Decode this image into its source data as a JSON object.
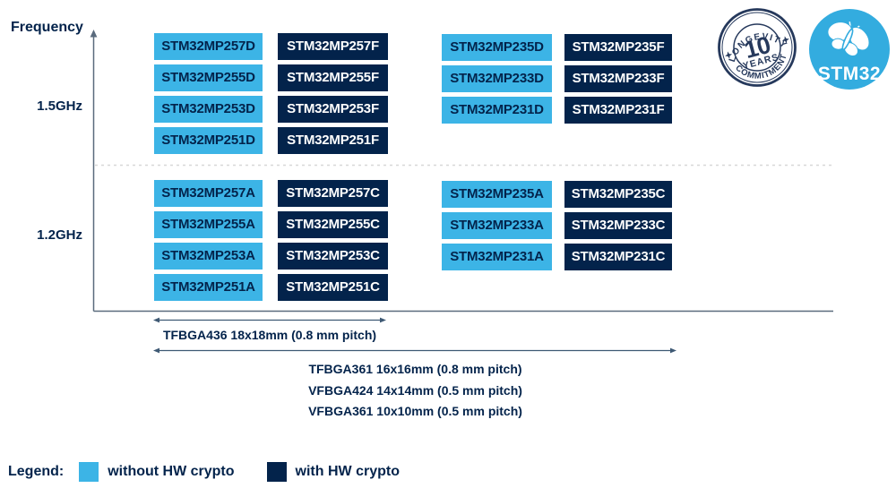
{
  "colors": {
    "light_blue": "#3CB4E6",
    "dark_navy": "#03234B",
    "axis_line": "#5A6B7D",
    "dotted_line": "#D8D8D8",
    "stamp_navy": "#26395C",
    "logo_blue": "#33ACDF"
  },
  "axis": {
    "title": "Frequency",
    "ticks": [
      "1.5GHz",
      "1.2GHz"
    ]
  },
  "groups": [
    {
      "id": "top-left",
      "frequency": "1.5GHz",
      "pairs": [
        [
          "STM32MP257D",
          "STM32MP257F"
        ],
        [
          "STM32MP255D",
          "STM32MP255F"
        ],
        [
          "STM32MP253D",
          "STM32MP253F"
        ],
        [
          "STM32MP251D",
          "STM32MP251F"
        ]
      ]
    },
    {
      "id": "top-right",
      "frequency": "1.5GHz",
      "pairs": [
        [
          "STM32MP235D",
          "STM32MP235F"
        ],
        [
          "STM32MP233D",
          "STM32MP233F"
        ],
        [
          "STM32MP231D",
          "STM32MP231F"
        ]
      ]
    },
    {
      "id": "bottom-left",
      "frequency": "1.2GHz",
      "pairs": [
        [
          "STM32MP257A",
          "STM32MP257C"
        ],
        [
          "STM32MP255A",
          "STM32MP255C"
        ],
        [
          "STM32MP253A",
          "STM32MP253C"
        ],
        [
          "STM32MP251A",
          "STM32MP251C"
        ]
      ]
    },
    {
      "id": "bottom-right",
      "frequency": "1.2GHz",
      "pairs": [
        [
          "STM32MP235A",
          "STM32MP235C"
        ],
        [
          "STM32MP233A",
          "STM32MP233C"
        ],
        [
          "STM32MP231A",
          "STM32MP231C"
        ]
      ]
    }
  ],
  "packages": {
    "arrow1_label": "TFBGA436 18x18mm (0.8 mm pitch)",
    "arrow2_labels": [
      "TFBGA361 16x16mm (0.8 mm pitch)",
      "VFBGA424 14x14mm (0.5 mm pitch)",
      "VFBGA361 10x10mm (0.5 mm pitch)"
    ]
  },
  "legend": {
    "title": "Legend:",
    "items": [
      {
        "label": "without HW crypto",
        "color": "#3CB4E6"
      },
      {
        "label": "with HW crypto",
        "color": "#03234B"
      }
    ]
  },
  "badges": {
    "longevity": {
      "arc_top": "LONGEVITY",
      "number": "10",
      "sub": "YEARS",
      "arc_bottom": "COMMITMENT"
    },
    "logo": {
      "text": "STM32"
    }
  }
}
